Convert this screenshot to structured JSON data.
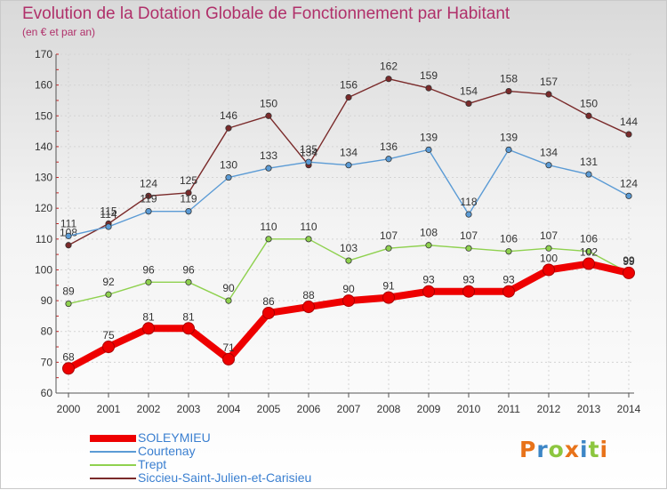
{
  "chart_data": {
    "type": "line",
    "title": "Evolution de la Dotation Globale de Fonctionnement par Habitant",
    "subtitle": "(en € et par an)",
    "xlabel": "",
    "ylabel": "",
    "x": [
      "2000",
      "2001",
      "2002",
      "2003",
      "2004",
      "2005",
      "2006",
      "2007",
      "2008",
      "2009",
      "2010",
      "2011",
      "2012",
      "2013",
      "2014"
    ],
    "ylim": [
      60,
      170
    ],
    "yticks": [
      60,
      70,
      80,
      90,
      100,
      110,
      120,
      130,
      140,
      150,
      160,
      170
    ],
    "grid": true,
    "legend_position": "bottom-left",
    "series": [
      {
        "name": "SOLEYMIEU",
        "color": "#ee0000",
        "values": [
          68,
          75,
          81,
          81,
          71,
          86,
          88,
          90,
          91,
          93,
          93,
          93,
          100,
          102,
          99
        ]
      },
      {
        "name": "Courtenay",
        "color": "#5b9bd5",
        "values": [
          111,
          114,
          119,
          119,
          130,
          133,
          135,
          134,
          136,
          139,
          118,
          139,
          134,
          131,
          124
        ]
      },
      {
        "name": "Trept",
        "color": "#8fd14f",
        "values": [
          89,
          92,
          96,
          96,
          90,
          110,
          110,
          103,
          107,
          108,
          107,
          106,
          107,
          106,
          99
        ]
      },
      {
        "name": "Siccieu-Saint-Julien-et-Carisieu",
        "color": "#7a2a2a",
        "values": [
          108,
          115,
          124,
          125,
          146,
          150,
          134,
          156,
          162,
          159,
          154,
          158,
          157,
          150,
          144
        ]
      }
    ]
  },
  "logo": {
    "text": "Proxiti"
  }
}
